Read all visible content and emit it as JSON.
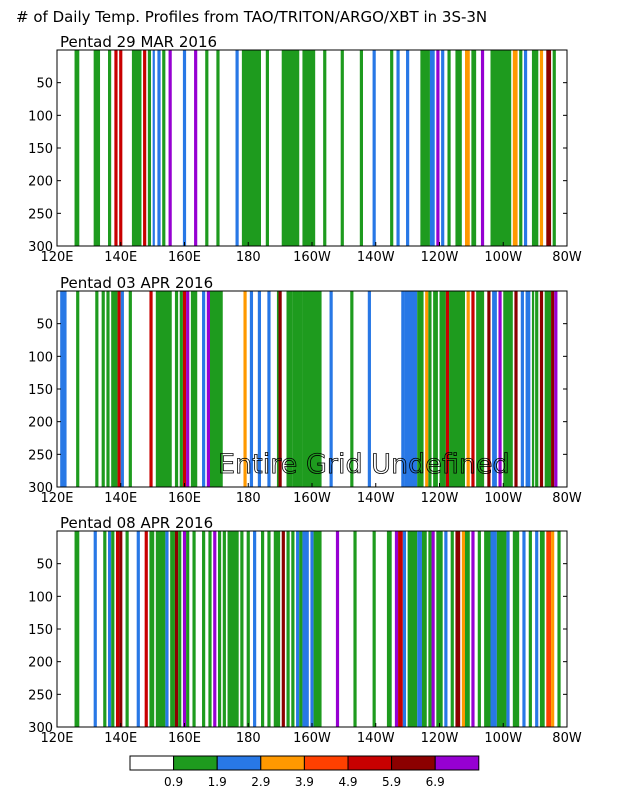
{
  "title": "# of Daily Temp. Profiles from TAO/TRITON/ARGO/XBT in 3S-3N",
  "colors": {
    "bin_0": "#ffffff",
    "bin_1": "#1e9b1e",
    "bin_2": "#2878e6",
    "bin_3": "#ff9900",
    "bin_4": "#ff4000",
    "bin_5": "#c80000",
    "bin_6": "#8c0000",
    "bin_7": "#9600d2"
  },
  "colorbar": {
    "labels": [
      "0.9",
      "1.9",
      "2.9",
      "3.9",
      "4.9",
      "5.9",
      "6.9"
    ]
  },
  "chart_data": [
    {
      "type": "heatmap",
      "title": "Pentad 29 MAR 2016",
      "x_ticks": [
        "120E",
        "140E",
        "160E",
        "180",
        "160W",
        "140W",
        "120W",
        "100W",
        "80W"
      ],
      "y_ticks": [
        "50",
        "100",
        "150",
        "200",
        "250",
        "300"
      ],
      "xlim": [
        120,
        280
      ],
      "ylim": [
        300,
        0
      ],
      "columns": [
        [
          125.5,
          127,
          1
        ],
        [
          131.5,
          133.5,
          1
        ],
        [
          136,
          137,
          1
        ],
        [
          138,
          139,
          5
        ],
        [
          139.5,
          140.5,
          5
        ],
        [
          143.5,
          146.5,
          1
        ],
        [
          147,
          148,
          5
        ],
        [
          148.5,
          149.5,
          1
        ],
        [
          150,
          150.7,
          2
        ],
        [
          151.5,
          152.5,
          2
        ],
        [
          153,
          154,
          1
        ],
        [
          155,
          156,
          7
        ],
        [
          159.5,
          160.5,
          2
        ],
        [
          163,
          164,
          7
        ],
        [
          166.5,
          167.5,
          1
        ],
        [
          170,
          171,
          1
        ],
        [
          176,
          177,
          2
        ],
        [
          178,
          184,
          1
        ],
        [
          185.5,
          186.5,
          1
        ],
        [
          190.5,
          192,
          1
        ],
        [
          192,
          196,
          1
        ],
        [
          197,
          201,
          1
        ],
        [
          203.5,
          204.5,
          1
        ],
        [
          209,
          210,
          1
        ],
        [
          215,
          216,
          1
        ],
        [
          219,
          220,
          2
        ],
        [
          224.5,
          225.5,
          1
        ],
        [
          226.5,
          227.5,
          2
        ],
        [
          229.5,
          230.5,
          2
        ],
        [
          234,
          237,
          1
        ],
        [
          237,
          238.5,
          2
        ],
        [
          239,
          240,
          7
        ],
        [
          240.5,
          241.5,
          2
        ],
        [
          242.5,
          243.5,
          1
        ],
        [
          245,
          247,
          1
        ],
        [
          248,
          249.5,
          3
        ],
        [
          250,
          251.5,
          1
        ],
        [
          253,
          254,
          7
        ],
        [
          256,
          262.5,
          1
        ],
        [
          263,
          264.5,
          3
        ],
        [
          265,
          266,
          1
        ],
        [
          266.5,
          267.5,
          2
        ],
        [
          269,
          271,
          1
        ],
        [
          271.5,
          272.5,
          3
        ],
        [
          273.5,
          275,
          6
        ],
        [
          275.5,
          276.5,
          1
        ]
      ]
    },
    {
      "type": "heatmap",
      "title": "Pentad 03 APR 2016",
      "x_ticks": [
        "120E",
        "140E",
        "160E",
        "180",
        "160W",
        "140W",
        "120W",
        "100W",
        "80W"
      ],
      "y_ticks": [
        "50",
        "100",
        "150",
        "200",
        "250",
        "300"
      ],
      "xlim": [
        120,
        280
      ],
      "ylim": [
        300,
        0
      ],
      "columns": [
        [
          121,
          123,
          2
        ],
        [
          126,
          127,
          1
        ],
        [
          132,
          133,
          1
        ],
        [
          134,
          135,
          1
        ],
        [
          135.5,
          136.5,
          1
        ],
        [
          137,
          139,
          1
        ],
        [
          139,
          140,
          5
        ],
        [
          140,
          141,
          2
        ],
        [
          142.5,
          143.5,
          1
        ],
        [
          149,
          150,
          5
        ],
        [
          151,
          156,
          1
        ],
        [
          157,
          158,
          1
        ],
        [
          158.5,
          159.5,
          1
        ],
        [
          159.5,
          160.5,
          5
        ],
        [
          160.5,
          161.5,
          7
        ],
        [
          162,
          164,
          1
        ],
        [
          165.5,
          166.5,
          2
        ],
        [
          167,
          168,
          7
        ],
        [
          168,
          172,
          1
        ],
        [
          178.5,
          179.5,
          3
        ],
        [
          180.5,
          181.5,
          2
        ],
        [
          183,
          184,
          2
        ],
        [
          186,
          187,
          2
        ],
        [
          189,
          190,
          1
        ],
        [
          189.5,
          190.5,
          6
        ],
        [
          192,
          194,
          1
        ],
        [
          194,
          197,
          1
        ],
        [
          197,
          203,
          1
        ],
        [
          205.5,
          206.5,
          2
        ],
        [
          212,
          213,
          1
        ],
        [
          217.5,
          218.5,
          2
        ],
        [
          228,
          229,
          2
        ],
        [
          229,
          233,
          2
        ],
        [
          233,
          235,
          1
        ],
        [
          235.5,
          236.5,
          3
        ],
        [
          236.5,
          237.5,
          1
        ],
        [
          238,
          239.5,
          1
        ],
        [
          240,
          242,
          1
        ],
        [
          242,
          243,
          5
        ],
        [
          243,
          248,
          1
        ],
        [
          248.5,
          249.5,
          3
        ],
        [
          250,
          251,
          5
        ],
        [
          251.5,
          254,
          1
        ],
        [
          255,
          256,
          6
        ],
        [
          256.5,
          258,
          2
        ],
        [
          258.5,
          259.5,
          7
        ],
        [
          260,
          263,
          1
        ],
        [
          263.5,
          264.5,
          6
        ],
        [
          265.5,
          266.5,
          2
        ],
        [
          267,
          268.5,
          2
        ],
        [
          269,
          269.7,
          1
        ],
        [
          270,
          271,
          1
        ],
        [
          271.5,
          272.5,
          6
        ],
        [
          273,
          275,
          1
        ],
        [
          275,
          276,
          6
        ],
        [
          276,
          277,
          7
        ]
      ]
    },
    {
      "type": "heatmap",
      "title": "Pentad 08 APR 2016",
      "x_ticks": [
        "120E",
        "140E",
        "160E",
        "180",
        "160W",
        "140W",
        "120W",
        "100W",
        "80W"
      ],
      "y_ticks": [
        "50",
        "100",
        "150",
        "200",
        "250",
        "300"
      ],
      "xlim": [
        120,
        280
      ],
      "ylim": [
        300,
        0
      ],
      "columns": [
        [
          125.5,
          127,
          1
        ],
        [
          131.5,
          132.5,
          2
        ],
        [
          134.5,
          135.5,
          1
        ],
        [
          136,
          137,
          2
        ],
        [
          137,
          138,
          1
        ],
        [
          138.5,
          139.5,
          5
        ],
        [
          139.5,
          140.5,
          6
        ],
        [
          141.5,
          142.5,
          1
        ],
        [
          145,
          146,
          2
        ],
        [
          147.5,
          148.5,
          5
        ],
        [
          149,
          150.5,
          1
        ],
        [
          151,
          154,
          1
        ],
        [
          154,
          155,
          2
        ],
        [
          155.5,
          157,
          1
        ],
        [
          157,
          158,
          6
        ],
        [
          158,
          159,
          1
        ],
        [
          159.5,
          160.5,
          7
        ],
        [
          160.5,
          161.5,
          1
        ],
        [
          162.5,
          163.5,
          1
        ],
        [
          165.5,
          166.5,
          1
        ],
        [
          167.5,
          168.5,
          1
        ],
        [
          169,
          170,
          7
        ],
        [
          170.5,
          171.5,
          1
        ],
        [
          172,
          173,
          1
        ],
        [
          173.5,
          177,
          1
        ],
        [
          177.5,
          178.5,
          1
        ],
        [
          179.5,
          180.5,
          1
        ],
        [
          181.5,
          182.5,
          2
        ],
        [
          184,
          185,
          1
        ],
        [
          186,
          187,
          1
        ],
        [
          188,
          190,
          1
        ],
        [
          190.5,
          191.5,
          6
        ],
        [
          192,
          193,
          1
        ],
        [
          193.5,
          194.5,
          1
        ],
        [
          195,
          196,
          2
        ],
        [
          196,
          197,
          1
        ],
        [
          197,
          199,
          2
        ],
        [
          199.5,
          200.5,
          2
        ],
        [
          200.5,
          203,
          1
        ],
        [
          207.5,
          208.5,
          7
        ],
        [
          213,
          214,
          1
        ],
        [
          219,
          220,
          1
        ],
        [
          223.5,
          225,
          1
        ],
        [
          226,
          227,
          7
        ],
        [
          227,
          228.5,
          5
        ],
        [
          228.5,
          229.5,
          2
        ],
        [
          230,
          232,
          1
        ],
        [
          232,
          233,
          1
        ],
        [
          233,
          234.5,
          2
        ],
        [
          234.5,
          236,
          1
        ],
        [
          236.5,
          237.5,
          1
        ],
        [
          237.5,
          238.5,
          7
        ],
        [
          239,
          241,
          1
        ],
        [
          241.5,
          242.5,
          2
        ],
        [
          243.5,
          244.5,
          1
        ],
        [
          245,
          246.5,
          6
        ],
        [
          247,
          248,
          3
        ],
        [
          248,
          249.5,
          1
        ],
        [
          250,
          251,
          7
        ],
        [
          252,
          253,
          1
        ],
        [
          254,
          256,
          1
        ],
        [
          256,
          258,
          2
        ],
        [
          258,
          261,
          1
        ],
        [
          261,
          262,
          2
        ],
        [
          263,
          265,
          1
        ],
        [
          266,
          267,
          2
        ],
        [
          268,
          269,
          1
        ],
        [
          270,
          271,
          2
        ],
        [
          271.5,
          273,
          1
        ],
        [
          273.5,
          275,
          4
        ],
        [
          275,
          276,
          3
        ],
        [
          277,
          278,
          1
        ]
      ]
    }
  ],
  "annotation": "Entire Grid Undefined"
}
